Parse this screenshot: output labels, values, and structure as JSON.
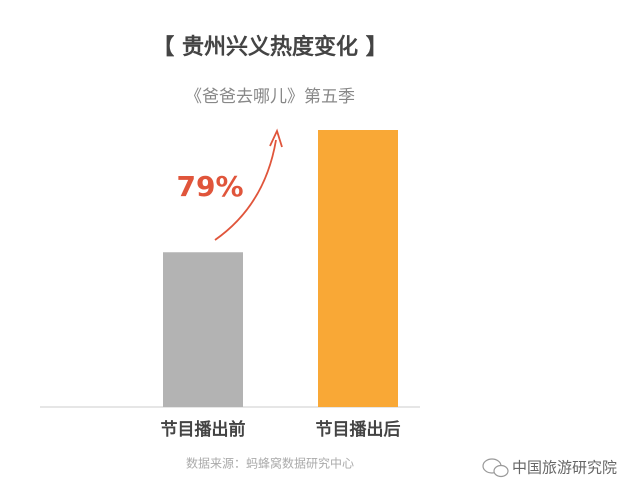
{
  "chart_data": {
    "type": "bar",
    "title": "【 贵州兴义热度变化 】",
    "subtitle": "《爸爸去哪儿》第五季",
    "categories": [
      "节目播出前",
      "节目播出后"
    ],
    "values": [
      100,
      179
    ],
    "colors": [
      "#b3b3b3",
      "#f9a836"
    ],
    "annotation": "79%",
    "source": "数据来源：蚂蜂窝数据研究中心",
    "watermark": "中国旅游研究院"
  }
}
